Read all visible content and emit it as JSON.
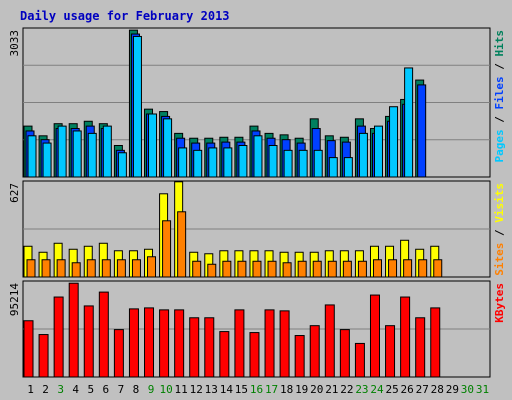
{
  "chart_data": {
    "type": "bar",
    "title": "Daily usage for February 2013",
    "categories": [
      "1",
      "2",
      "3",
      "4",
      "5",
      "6",
      "7",
      "8",
      "9",
      "10",
      "11",
      "12",
      "13",
      "14",
      "15",
      "16",
      "17",
      "18",
      "19",
      "20",
      "21",
      "22",
      "23",
      "24",
      "25",
      "26",
      "27",
      "28",
      "29",
      "30",
      "31"
    ],
    "weekend_days": [
      "3",
      "9",
      "10",
      "16",
      "17",
      "23",
      "24",
      "30",
      "31"
    ],
    "panels": [
      {
        "id": "requests",
        "max_label": "3033",
        "ymax": 3033,
        "axis_legend": [
          {
            "text": "Pages",
            "color": "#00c8ff"
          },
          {
            "text": " / ",
            "color": "#000000"
          },
          {
            "text": "Files",
            "color": "#0040ff"
          },
          {
            "text": " / ",
            "color": "#000000"
          },
          {
            "text": "Hits",
            "color": "#00805c"
          }
        ],
        "series": [
          {
            "name": "Hits",
            "color": "#008060",
            "values": [
              1050,
              850,
              1100,
              1100,
              1150,
              1100,
              650,
              3030,
              1400,
              1350,
              900,
              800,
              800,
              820,
              820,
              1050,
              900,
              870,
              800,
              1200,
              850,
              820,
              1200,
              1000,
              1250,
              1600,
              2000,
              0,
              0,
              0,
              0
            ]
          },
          {
            "name": "Files",
            "color": "#0040ff",
            "values": [
              950,
              770,
              1000,
              1000,
              1050,
              1000,
              550,
              2950,
              1300,
              1250,
              800,
              700,
              700,
              720,
              720,
              950,
              800,
              770,
              700,
              1000,
              750,
              720,
              1050,
              900,
              1150,
              1500,
              1900,
              0,
              0,
              0,
              0
            ]
          },
          {
            "name": "Pages",
            "color": "#00c8ff",
            "values": [
              850,
              700,
              1050,
              950,
              900,
              1050,
              500,
              2900,
              1300,
              1200,
              600,
              550,
              600,
              600,
              650,
              850,
              650,
              550,
              550,
              550,
              400,
              400,
              900,
              1050,
              1450,
              2250,
              0,
              0,
              0,
              0,
              0
            ]
          }
        ]
      },
      {
        "id": "visits",
        "max_label": "627",
        "ymax": 627,
        "axis_legend": [
          {
            "text": "Sites",
            "color": "#ff8000"
          },
          {
            "text": " / ",
            "color": "#000000"
          },
          {
            "text": "Visits",
            "color": "#ffff00"
          }
        ],
        "series": [
          {
            "name": "Visits",
            "color": "#ffff00",
            "values": [
              205,
              165,
              225,
              185,
              205,
              225,
              175,
              175,
              185,
              555,
              635,
              165,
              155,
              175,
              175,
              175,
              175,
              165,
              165,
              165,
              175,
              175,
              175,
              205,
              205,
              245,
              185,
              205,
              0,
              0,
              0
            ]
          },
          {
            "name": "Sites",
            "color": "#ff8000",
            "values": [
              115,
              115,
              115,
              95,
              115,
              115,
              115,
              115,
              135,
              375,
              435,
              105,
              85,
              105,
              105,
              105,
              105,
              95,
              105,
              105,
              105,
              105,
              105,
              115,
              115,
              115,
              115,
              115,
              0,
              0,
              0
            ]
          }
        ]
      },
      {
        "id": "kbytes",
        "max_label": "95214",
        "ymax": 95214,
        "axis_legend": [
          {
            "text": "KBytes",
            "color": "#ff0000"
          }
        ],
        "series": [
          {
            "name": "KBytes",
            "color": "#ff0000",
            "values": [
              57000,
              43000,
              81000,
              95000,
              72000,
              86000,
              48000,
              69000,
              70000,
              68000,
              68000,
              60000,
              60000,
              46000,
              68000,
              45000,
              68000,
              67000,
              42000,
              52000,
              73000,
              48000,
              34000,
              83000,
              52000,
              81000,
              60000,
              70000,
              0,
              0,
              0
            ]
          }
        ]
      }
    ]
  }
}
